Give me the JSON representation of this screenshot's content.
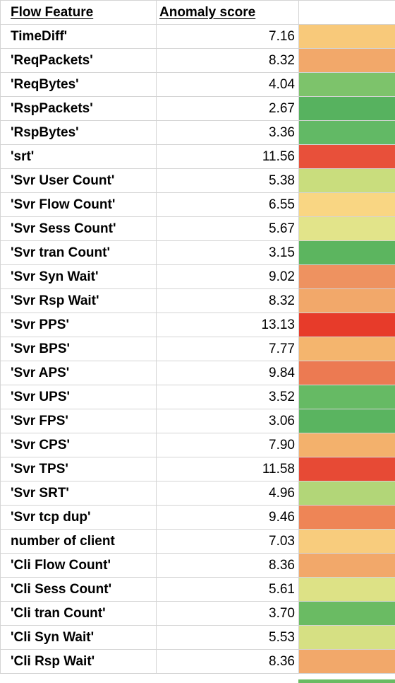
{
  "headers": {
    "feature": "Flow Feature",
    "score": "Anomaly score"
  },
  "rows": [
    {
      "feature": "TimeDiff'",
      "score": "7.16",
      "color": "#f8c97a"
    },
    {
      "feature": "'ReqPackets'",
      "score": "8.32",
      "color": "#f2a86a"
    },
    {
      "feature": "'ReqBytes'",
      "score": "4.04",
      "color": "#7dc36b"
    },
    {
      "feature": "'RspPackets'",
      "score": "2.67",
      "color": "#57b25f"
    },
    {
      "feature": "'RspBytes'",
      "score": "3.36",
      "color": "#62b965"
    },
    {
      "feature": "'srt'",
      "score": "11.56",
      "color": "#e8503a"
    },
    {
      "feature": "'Svr User Count'",
      "score": "5.38",
      "color": "#c9dd7d"
    },
    {
      "feature": "'Svr Flow Count'",
      "score": "6.55",
      "color": "#f9d683"
    },
    {
      "feature": "'Svr Sess Count'",
      "score": "5.67",
      "color": "#e2e48a"
    },
    {
      "feature": "'Svr tran Count'",
      "score": "3.15",
      "color": "#5cb55f"
    },
    {
      "feature": "'Svr Syn Wait'",
      "score": "9.02",
      "color": "#ee9260"
    },
    {
      "feature": "'Svr Rsp Wait'",
      "score": "8.32",
      "color": "#f2a86a"
    },
    {
      "feature": "'Svr PPS'",
      "score": "13.13",
      "color": "#e73b2a"
    },
    {
      "feature": "'Svr BPS'",
      "score": "7.77",
      "color": "#f4b56e"
    },
    {
      "feature": "'Svr APS'",
      "score": "9.84",
      "color": "#ec7a52"
    },
    {
      "feature": "'Svr UPS'",
      "score": "3.52",
      "color": "#66ba64"
    },
    {
      "feature": "'Svr FPS'",
      "score": "3.06",
      "color": "#5ab460"
    },
    {
      "feature": "'Svr CPS'",
      "score": "7.90",
      "color": "#f3b16c"
    },
    {
      "feature": "'Svr TPS'",
      "score": "11.58",
      "color": "#e74a35"
    },
    {
      "feature": "'Svr SRT'",
      "score": "4.96",
      "color": "#b2d678"
    },
    {
      "feature": "'Svr tcp dup'",
      "score": "9.46",
      "color": "#ee8556"
    },
    {
      "feature": "number of client",
      "score": "7.03",
      "color": "#f8cc7d"
    },
    {
      "feature": "'Cli Flow Count'",
      "score": "8.36",
      "color": "#f2a86a"
    },
    {
      "feature": "'Cli Sess Count'",
      "score": "5.61",
      "color": "#dde286"
    },
    {
      "feature": "'Cli tran Count'",
      "score": "3.70",
      "color": "#6abb63"
    },
    {
      "feature": "'Cli Syn Wait'",
      "score": "5.53",
      "color": "#d6e083"
    },
    {
      "feature": "'Cli Rsp Wait'",
      "score": "8.36",
      "color": "#f2a86a"
    }
  ],
  "bottom_strip_color": "#6abb63"
}
